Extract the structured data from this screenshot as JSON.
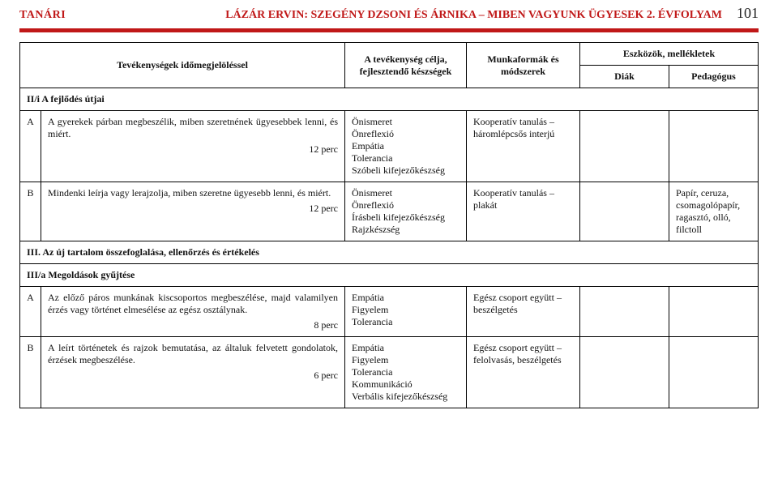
{
  "header": {
    "left": "TANÁRI",
    "center": "LÁZÁR ERVIN: SZEGÉNY DZSONI ÉS ÁRNIKA – MIBEN VAGYUNK ÜGYESEK  2. ÉVFOLYAM",
    "pagenum": "101"
  },
  "thead": {
    "activities": "Tevékenységek időmegjelöléssel",
    "skills": "A tevékenység célja, fejlesztendő készségek",
    "methods": "Munkaformák és módszerek",
    "tools": "Eszközök, mellékletek",
    "diak": "Diák",
    "pedagogus": "Pedagógus"
  },
  "sections": {
    "s1": "II/i A fejlődés útjai",
    "s2": "III. Az új tartalom összefoglalása, ellenőrzés és értékelés",
    "s3": "III/a Megoldások gyűjtése"
  },
  "rows": {
    "r1": {
      "label": "A",
      "act": "A gyerekek párban megbeszélik, miben szeretnének ügyesebbek lenni, és miért.",
      "perc": "12 perc",
      "skills": "Önismeret\nÖnreflexió\nEmpátia\nTolerancia\nSzóbeli kifejezőkészség",
      "methods": "Kooperatív tanulás – háromlépcsős interjú",
      "diak": "",
      "ped": ""
    },
    "r2": {
      "label": "B",
      "act": "Mindenki leírja vagy lerajzolja, miben szeretne ügyesebb lenni, és miért.",
      "perc": "12 perc",
      "skills": "Önismeret\nÖnreflexió\nÍrásbeli kifejezőkészség\nRajzkészség",
      "methods": "Kooperatív tanulás – plakát",
      "diak": "",
      "ped": "Papír, ceruza, csomagolópapír, ragasztó, olló, filctoll"
    },
    "r3": {
      "label": "A",
      "act": "Az előző páros munkának kiscsoportos megbeszélése, majd valamilyen érzés vagy történet elmesélése az egész osztálynak.",
      "perc": "8 perc",
      "skills": "Empátia\nFigyelem\nTolerancia",
      "methods": "Egész csoport együtt – beszélgetés",
      "diak": "",
      "ped": ""
    },
    "r4": {
      "label": "B",
      "act": "A leírt történetek és rajzok bemutatása, az általuk felvetett gondolatok, érzések megbeszélése.",
      "perc": "6 perc",
      "skills": "Empátia\nFigyelem\nTolerancia\nKommunikáció\nVerbális kifejezőkészség",
      "methods": "Egész csoport együtt – felolvasás, beszélgetés",
      "diak": "",
      "ped": ""
    }
  }
}
